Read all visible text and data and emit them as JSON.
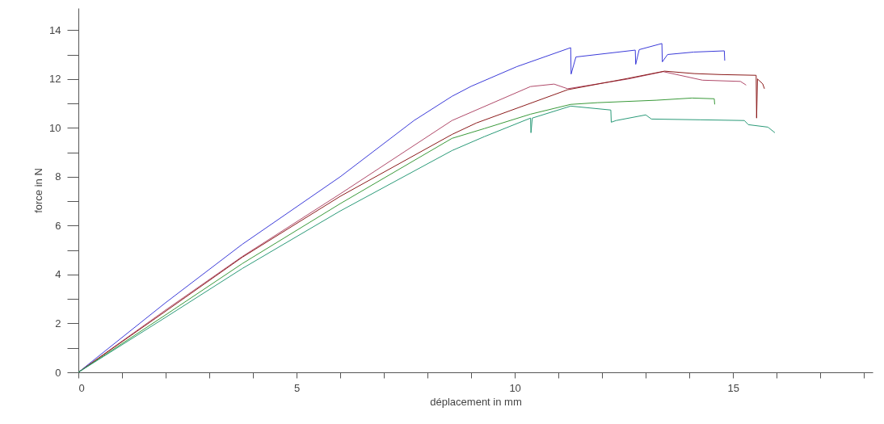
{
  "chart_data": {
    "type": "line",
    "xlabel": "déplacement in mm",
    "ylabel": "force in N",
    "xlim": [
      0,
      18.2
    ],
    "ylim": [
      0,
      14.9
    ],
    "xticks": [
      0,
      {
        "value": 1,
        "label": null
      },
      {
        "value": 2,
        "label": null
      },
      {
        "value": 3,
        "label": null
      },
      {
        "value": 4,
        "label": null
      },
      5,
      {
        "value": 6,
        "label": null
      },
      {
        "value": 7,
        "label": null
      },
      {
        "value": 8,
        "label": null
      },
      {
        "value": 9,
        "label": null
      },
      10,
      {
        "value": 11,
        "label": null
      },
      {
        "value": 12,
        "label": null
      },
      {
        "value": 13,
        "label": null
      },
      {
        "value": 14,
        "label": null
      },
      15,
      {
        "value": 16,
        "label": null
      },
      {
        "value": 17,
        "label": null
      },
      {
        "value": 18,
        "label": null
      }
    ],
    "yticks": [
      0,
      {
        "value": 1,
        "label": null
      },
      2,
      {
        "value": 3,
        "label": null
      },
      4,
      {
        "value": 5,
        "label": null
      },
      6,
      {
        "value": 7,
        "label": null
      },
      8,
      {
        "value": 9,
        "label": null
      },
      10,
      {
        "value": 11,
        "label": null
      },
      12,
      {
        "value": 13,
        "label": null
      },
      14
    ],
    "grid": false,
    "marker": "none",
    "line_style": "solid",
    "series": [
      {
        "color": "#3b3bd9",
        "x": [
          0,
          2,
          3.75,
          6,
          7.69,
          8.56,
          9,
          10.04,
          11.28,
          11.29,
          11.4,
          12.76,
          12.77,
          12.85,
          13.37,
          13.38,
          13.5,
          14.1,
          14.8,
          14.81
        ],
        "values": [
          0,
          2.85,
          5.23,
          8.0,
          10.3,
          11.29,
          11.7,
          12.5,
          13.28,
          12.2,
          12.9,
          13.18,
          12.6,
          13.2,
          13.45,
          12.7,
          13.0,
          13.1,
          13.15,
          12.75
        ]
      },
      {
        "color": "#b04a6a",
        "x": [
          0,
          2,
          3.75,
          6,
          8.56,
          10.36,
          10.9,
          11.21,
          12.6,
          13.4,
          14.3,
          15.17,
          15.3
        ],
        "values": [
          0,
          2.55,
          4.73,
          7.3,
          10.3,
          11.69,
          11.79,
          11.6,
          12.0,
          12.3,
          11.95,
          11.9,
          11.75
        ]
      },
      {
        "color": "#8b1a1a",
        "x": [
          0,
          2,
          3.75,
          6,
          8.56,
          9.12,
          11.21,
          12.58,
          13.43,
          14.11,
          14.72,
          15.53,
          15.54,
          15.56,
          15.68,
          15.72
        ],
        "values": [
          0,
          2.5,
          4.7,
          7.2,
          9.73,
          10.2,
          11.56,
          12.02,
          12.32,
          12.22,
          12.18,
          12.15,
          10.4,
          12.0,
          11.8,
          11.6
        ]
      },
      {
        "color": "#3a9a3a",
        "x": [
          0,
          2,
          3.75,
          6,
          8.56,
          9.3,
          10.36,
          11.28,
          11.89,
          13.24,
          14.06,
          14.57,
          14.58
        ],
        "values": [
          0,
          2.35,
          4.44,
          6.9,
          9.57,
          9.97,
          10.56,
          10.96,
          11.03,
          11.13,
          11.22,
          11.19,
          10.96
        ]
      },
      {
        "color": "#2a9a78",
        "x": [
          0,
          2,
          3.75,
          6,
          8.56,
          9.3,
          10.36,
          10.37,
          10.4,
          11.28,
          12.2,
          12.21,
          12.32,
          13.0,
          13.13,
          14.24,
          15.26,
          15.35,
          15.8,
          15.96
        ],
        "values": [
          0,
          2.25,
          4.24,
          6.6,
          9.07,
          9.64,
          10.4,
          9.8,
          10.4,
          10.89,
          10.73,
          10.23,
          10.3,
          10.53,
          10.36,
          10.33,
          10.3,
          10.13,
          10.03,
          9.8
        ]
      }
    ]
  }
}
